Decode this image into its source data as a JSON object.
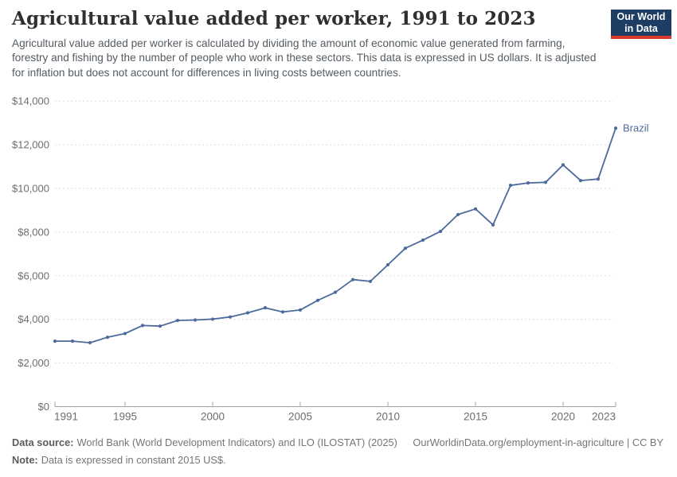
{
  "header": {
    "title": "Agricultural value added per worker, 1991 to 2023",
    "subtitle": "Agricultural value added per worker is calculated by dividing the amount of economic value generated from farming, forestry and fishing by the number of people who work in these sectors. This data is expressed in US dollars. It is adjusted for inflation but does not account for differences in living costs between countries."
  },
  "logo": {
    "line1": "Our World",
    "line2": "in Data",
    "bg_color": "#1d3d63",
    "accent_color": "#d93a2d"
  },
  "chart_data": {
    "type": "line",
    "title": "Agricultural value added per worker, 1991 to 2023",
    "xlabel": "",
    "ylabel": "",
    "xlim": [
      1991,
      2023
    ],
    "ylim": [
      0,
      14000
    ],
    "grid": "horizontal-dashed",
    "legend_position": "end-of-line-label",
    "x_ticks": [
      1991,
      1995,
      2000,
      2005,
      2010,
      2015,
      2020,
      2023
    ],
    "y_ticks": [
      {
        "value": 0,
        "label": "$0"
      },
      {
        "value": 2000,
        "label": "$2,000"
      },
      {
        "value": 4000,
        "label": "$4,000"
      },
      {
        "value": 6000,
        "label": "$6,000"
      },
      {
        "value": 8000,
        "label": "$8,000"
      },
      {
        "value": 10000,
        "label": "$10,000"
      },
      {
        "value": 12000,
        "label": "$12,000"
      },
      {
        "value": 14000,
        "label": "$14,000"
      }
    ],
    "series": [
      {
        "name": "Brazil",
        "color": "#4c6a9c",
        "x": [
          1991,
          1992,
          1993,
          1994,
          1995,
          1996,
          1997,
          1998,
          1999,
          2000,
          2001,
          2002,
          2003,
          2004,
          2005,
          2006,
          2007,
          2008,
          2009,
          2010,
          2011,
          2012,
          2013,
          2014,
          2015,
          2016,
          2017,
          2018,
          2019,
          2020,
          2021,
          2022,
          2023
        ],
        "values": [
          3000,
          3000,
          2930,
          3180,
          3350,
          3720,
          3690,
          3950,
          3970,
          4010,
          4110,
          4300,
          4530,
          4340,
          4430,
          4870,
          5240,
          5820,
          5740,
          6500,
          7260,
          7630,
          8030,
          8800,
          9060,
          8330,
          10140,
          10250,
          10280,
          11080,
          10360,
          10430,
          12760
        ]
      }
    ],
    "axis_color": "#a3a3a3",
    "gridline_color": "#dddddd",
    "tick_label_color": "#6e6e6e"
  },
  "footer": {
    "datasource_label": "Data source:",
    "datasource_text": "World Bank (World Development Indicators) and ILO (ILOSTAT) (2025)",
    "link_text": "OurWorldinData.org/employment-in-agriculture | CC BY",
    "note_label": "Note:",
    "note_text": "Data is expressed in constant 2015 US$."
  }
}
